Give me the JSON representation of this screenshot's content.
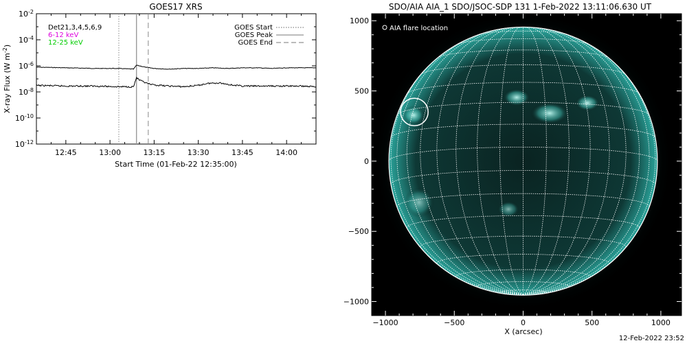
{
  "left_panel": {
    "title": "GOES17 XRS",
    "legend_left": [
      {
        "label": "Det21,3,4,5,6,9",
        "color": "#000000"
      },
      {
        "label": "6-12 keV",
        "color": "#dd00dd"
      },
      {
        "label": "12-25 keV",
        "color": "#00cc00"
      }
    ],
    "legend_right": [
      {
        "label": "GOES Start",
        "style": "dotted"
      },
      {
        "label": "GOES Peak",
        "style": "solid"
      },
      {
        "label": "GOES End",
        "style": "dashed"
      }
    ]
  },
  "right_panel": {
    "title": "SDO/AIA AIA_1 SDO/JSOC-SDP 131  1-Feb-2022 13:11:06.630 UT",
    "legend": "AIA flare location",
    "colors": {
      "background": "#000000",
      "disk": "#0e3a38",
      "limb": "#4fd6cc",
      "grid": "#ffffff"
    }
  },
  "footer_timestamp": "12-Feb-2022 23:52",
  "chart_data": [
    {
      "type": "line",
      "title": "GOES17 XRS",
      "xlabel": "Start Time (01-Feb-22 12:35:00)",
      "ylabel": "X-ray Flux (W m",
      "ylabel_sup": "-2",
      "ylabel_tail": ")",
      "x_unit": "minutes since 12:35:00",
      "xlim": [
        0,
        95
      ],
      "ylim_log10": [
        -12,
        -2
      ],
      "x_ticks": [
        {
          "value": 10,
          "label": "12:45"
        },
        {
          "value": 25,
          "label": "13:00"
        },
        {
          "value": 40,
          "label": "13:15"
        },
        {
          "value": 55,
          "label": "13:30"
        },
        {
          "value": 70,
          "label": "13:45"
        },
        {
          "value": 85,
          "label": "14:00"
        }
      ],
      "y_ticks": [
        {
          "exp": -12,
          "base": "10",
          "sup": "-12"
        },
        {
          "exp": -10,
          "base": "10",
          "sup": "-10"
        },
        {
          "exp": -8,
          "base": "10",
          "sup": "-8"
        },
        {
          "exp": -6,
          "base": "10",
          "sup": "-6"
        },
        {
          "exp": -4,
          "base": "10",
          "sup": "-4"
        },
        {
          "exp": -2,
          "base": "10",
          "sup": "-2"
        }
      ],
      "event_lines": [
        {
          "name": "GOES Start",
          "x": 28,
          "style": "dotted"
        },
        {
          "name": "GOES Peak",
          "x": 34,
          "style": "solid"
        },
        {
          "name": "GOES End",
          "x": 38,
          "style": "dashed"
        }
      ],
      "series": [
        {
          "color": "#000000",
          "x": [
            0,
            10,
            20,
            28,
            33,
            34,
            35,
            37,
            40,
            45,
            50,
            55,
            60,
            65,
            70,
            75,
            80,
            85,
            90,
            95
          ],
          "log10_flux": [
            -6.1,
            -6.15,
            -6.2,
            -6.2,
            -6.25,
            -5.95,
            -6.0,
            -6.1,
            -6.2,
            -6.25,
            -6.2,
            -6.2,
            -6.15,
            -6.2,
            -6.15,
            -6.15,
            -6.2,
            -6.15,
            -6.15,
            -6.15
          ]
        },
        {
          "color": "#000000",
          "x": [
            0,
            10,
            20,
            28,
            33,
            34,
            35,
            37,
            39,
            42,
            45,
            50,
            55,
            58,
            62,
            66,
            70,
            75,
            80,
            85,
            90,
            95
          ],
          "log10_flux": [
            -7.5,
            -7.55,
            -7.55,
            -7.6,
            -7.6,
            -6.9,
            -7.1,
            -7.3,
            -7.45,
            -7.5,
            -7.55,
            -7.6,
            -7.5,
            -7.35,
            -7.3,
            -7.45,
            -7.55,
            -7.55,
            -7.55,
            -7.55,
            -7.55,
            -7.6
          ]
        }
      ]
    },
    {
      "type": "scatter",
      "title": "SDO/AIA AIA_1 SDO/JSOC-SDP 131  1-Feb-2022 13:11:06.630 UT",
      "xlabel": "X (arcsec)",
      "ylabel": "",
      "xlim": [
        -1100,
        1150
      ],
      "ylim": [
        -1100,
        1050
      ],
      "x_ticks": [
        -1000,
        -500,
        0,
        500,
        1000
      ],
      "y_ticks": [
        -1000,
        -500,
        0,
        500,
        1000
      ],
      "x_tick_labels": [
        "−1000",
        "−500",
        "0",
        "500",
        "1000"
      ],
      "y_tick_labels": [
        "−1000",
        "−500",
        "0",
        "500",
        "1000"
      ],
      "solar_radius_arcsec": 975,
      "grid_lat_step_deg": 10,
      "grid_lon_step_deg": 10,
      "b0_deg": -6,
      "flare": {
        "x": -790,
        "y": 350,
        "r": 100
      }
    }
  ]
}
